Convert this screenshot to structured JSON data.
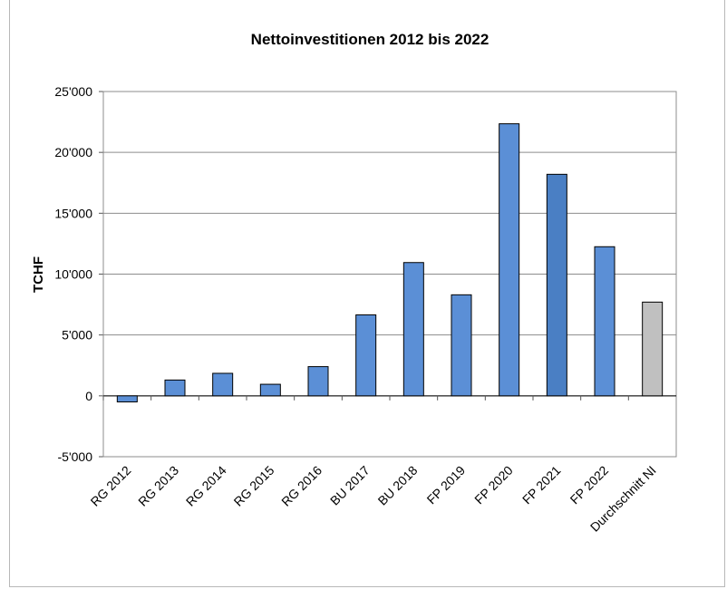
{
  "chart_data": {
    "type": "bar",
    "title": "Nettoinvestitionen 2012 bis 2022",
    "xlabel": "",
    "ylabel": "TCHF",
    "ylim": [
      -5000,
      25000
    ],
    "yticks": [
      -5000,
      0,
      5000,
      10000,
      15000,
      20000,
      25000
    ],
    "ytick_labels": [
      "-5'000",
      "0",
      "5'000",
      "10'000",
      "15'000",
      "20'000",
      "25'000"
    ],
    "categories": [
      "RG 2012",
      "RG 2013",
      "RG 2014",
      "RG 2015",
      "RG 2016",
      "BU 2017",
      "BU 2018",
      "FP 2019",
      "FP 2020",
      "FP 2021",
      "FP 2022",
      "Durchschnitt NI"
    ],
    "values": [
      -500,
      1300,
      1850,
      950,
      2400,
      6650,
      10950,
      8300,
      22350,
      18200,
      12250,
      7700
    ],
    "colors": [
      "#5b8fd6",
      "#5b8fd6",
      "#5b8fd6",
      "#5b8fd6",
      "#5b8fd6",
      "#5b8fd6",
      "#5b8fd6",
      "#5b8fd6",
      "#5b8fd6",
      "#4a7fc4",
      "#5b8fd6",
      "#c0c0c0"
    ],
    "grid": true,
    "legend": "none"
  }
}
